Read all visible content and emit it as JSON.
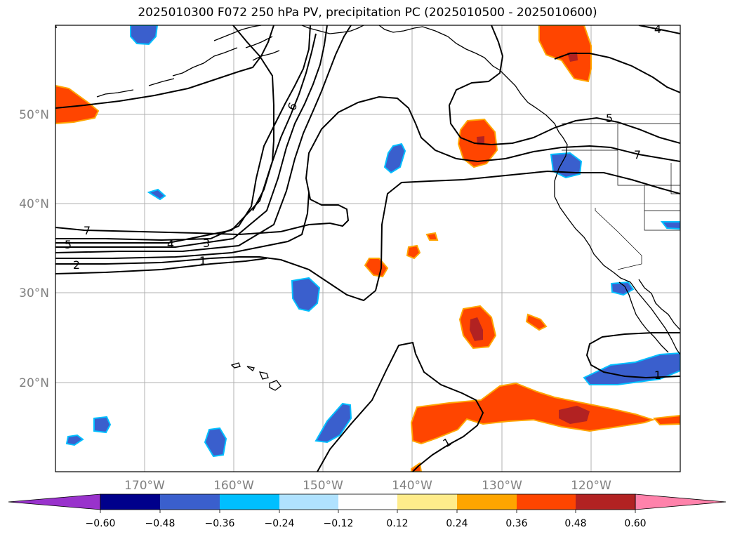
{
  "title": "2025010300 F072 250 hPa PV, precipitation PC (2025010500 - 2025010600)",
  "map": {
    "lon_range": [
      -180,
      -110
    ],
    "lat_range": [
      10,
      60
    ],
    "lon_ticks": [
      {
        "lon": -170,
        "label": "170°W"
      },
      {
        "lon": -160,
        "label": "160°W"
      },
      {
        "lon": -150,
        "label": "150°W"
      },
      {
        "lon": -140,
        "label": "140°W"
      },
      {
        "lon": -130,
        "label": "130°W"
      },
      {
        "lon": -120,
        "label": "120°W"
      }
    ],
    "lat_ticks": [
      {
        "lat": 50,
        "label": "50°N"
      },
      {
        "lat": 40,
        "label": "40°N"
      },
      {
        "lat": 30,
        "label": "30°N"
      },
      {
        "lat": 20,
        "label": "20°N"
      }
    ],
    "grid": true
  },
  "contour_labels": [
    "7",
    "5",
    "4",
    "3",
    "2",
    "1",
    "6",
    "4",
    "5",
    "7",
    "1",
    "1"
  ],
  "colorbar": {
    "colors": [
      "#9932cc",
      "#00008b",
      "#3a5fcd",
      "#00bfff",
      "#b0e2ff",
      "#ffffff",
      "#ffec8b",
      "#ffa500",
      "#ff4500",
      "#b22222",
      "#ff82ab"
    ],
    "ticks": [
      "−0.60",
      "−0.48",
      "−0.36",
      "−0.24",
      "−0.12",
      "0.12",
      "0.24",
      "0.36",
      "0.48",
      "0.60"
    ]
  }
}
